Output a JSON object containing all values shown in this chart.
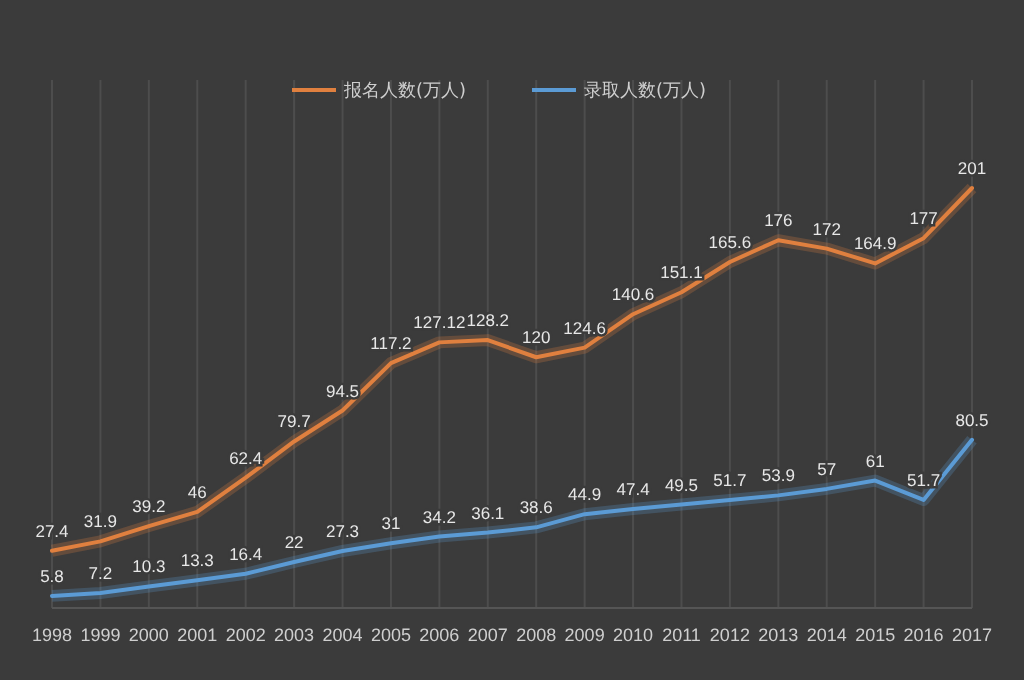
{
  "chart_data": {
    "type": "line",
    "categories": [
      "1998",
      "1999",
      "2000",
      "2001",
      "2002",
      "2003",
      "2004",
      "2005",
      "2006",
      "2007",
      "2008",
      "2009",
      "2010",
      "2011",
      "2012",
      "2013",
      "2014",
      "2015",
      "2016",
      "2017"
    ],
    "series": [
      {
        "name": "报名人数(万人)",
        "color": "#e0803f",
        "values": [
          27.4,
          31.9,
          39.2,
          46,
          62.4,
          79.7,
          94.5,
          117.2,
          127.12,
          128.2,
          120,
          124.6,
          140.6,
          151.1,
          165.6,
          176,
          172,
          164.9,
          177,
          201
        ]
      },
      {
        "name": "录取人数(万人)",
        "color": "#5b9bd5",
        "values": [
          5.8,
          7.2,
          10.3,
          13.3,
          16.4,
          22,
          27.3,
          31,
          34.2,
          36.1,
          38.6,
          44.9,
          47.4,
          49.5,
          51.7,
          53.9,
          57,
          61,
          51.7,
          80.5
        ]
      }
    ],
    "data_labels": true,
    "grid": "x",
    "legend": "top",
    "marker": "none",
    "line_style": "solid"
  }
}
